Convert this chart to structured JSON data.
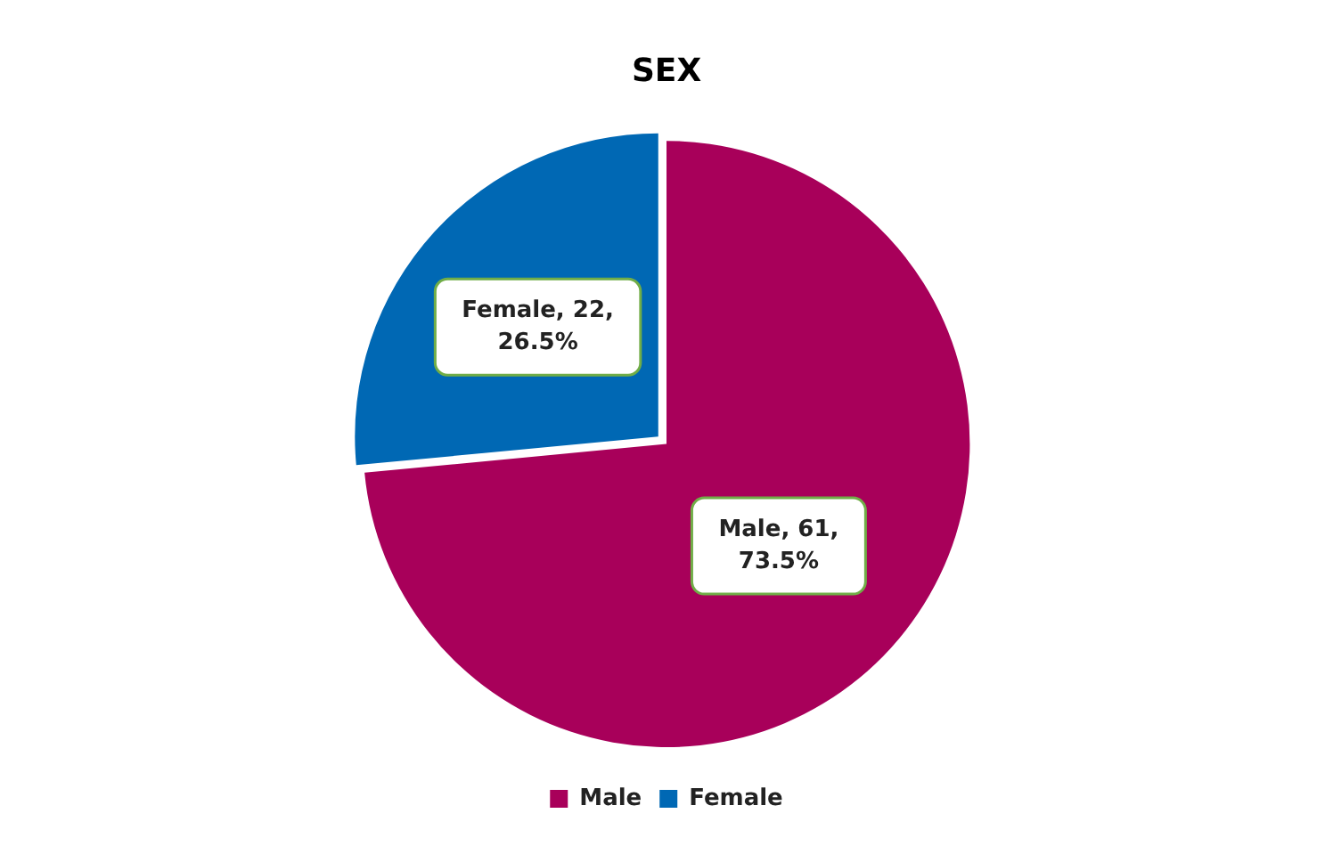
{
  "chart_data": {
    "type": "pie",
    "title": "SEX",
    "categories": [
      "Male",
      "Female"
    ],
    "values": [
      61,
      22
    ],
    "colors": [
      "#a8005a",
      "#0068b4"
    ],
    "value_labels": [
      "Male, 61, 73.5%",
      "Female, 22, 26.5%"
    ],
    "legend": "bottom"
  }
}
